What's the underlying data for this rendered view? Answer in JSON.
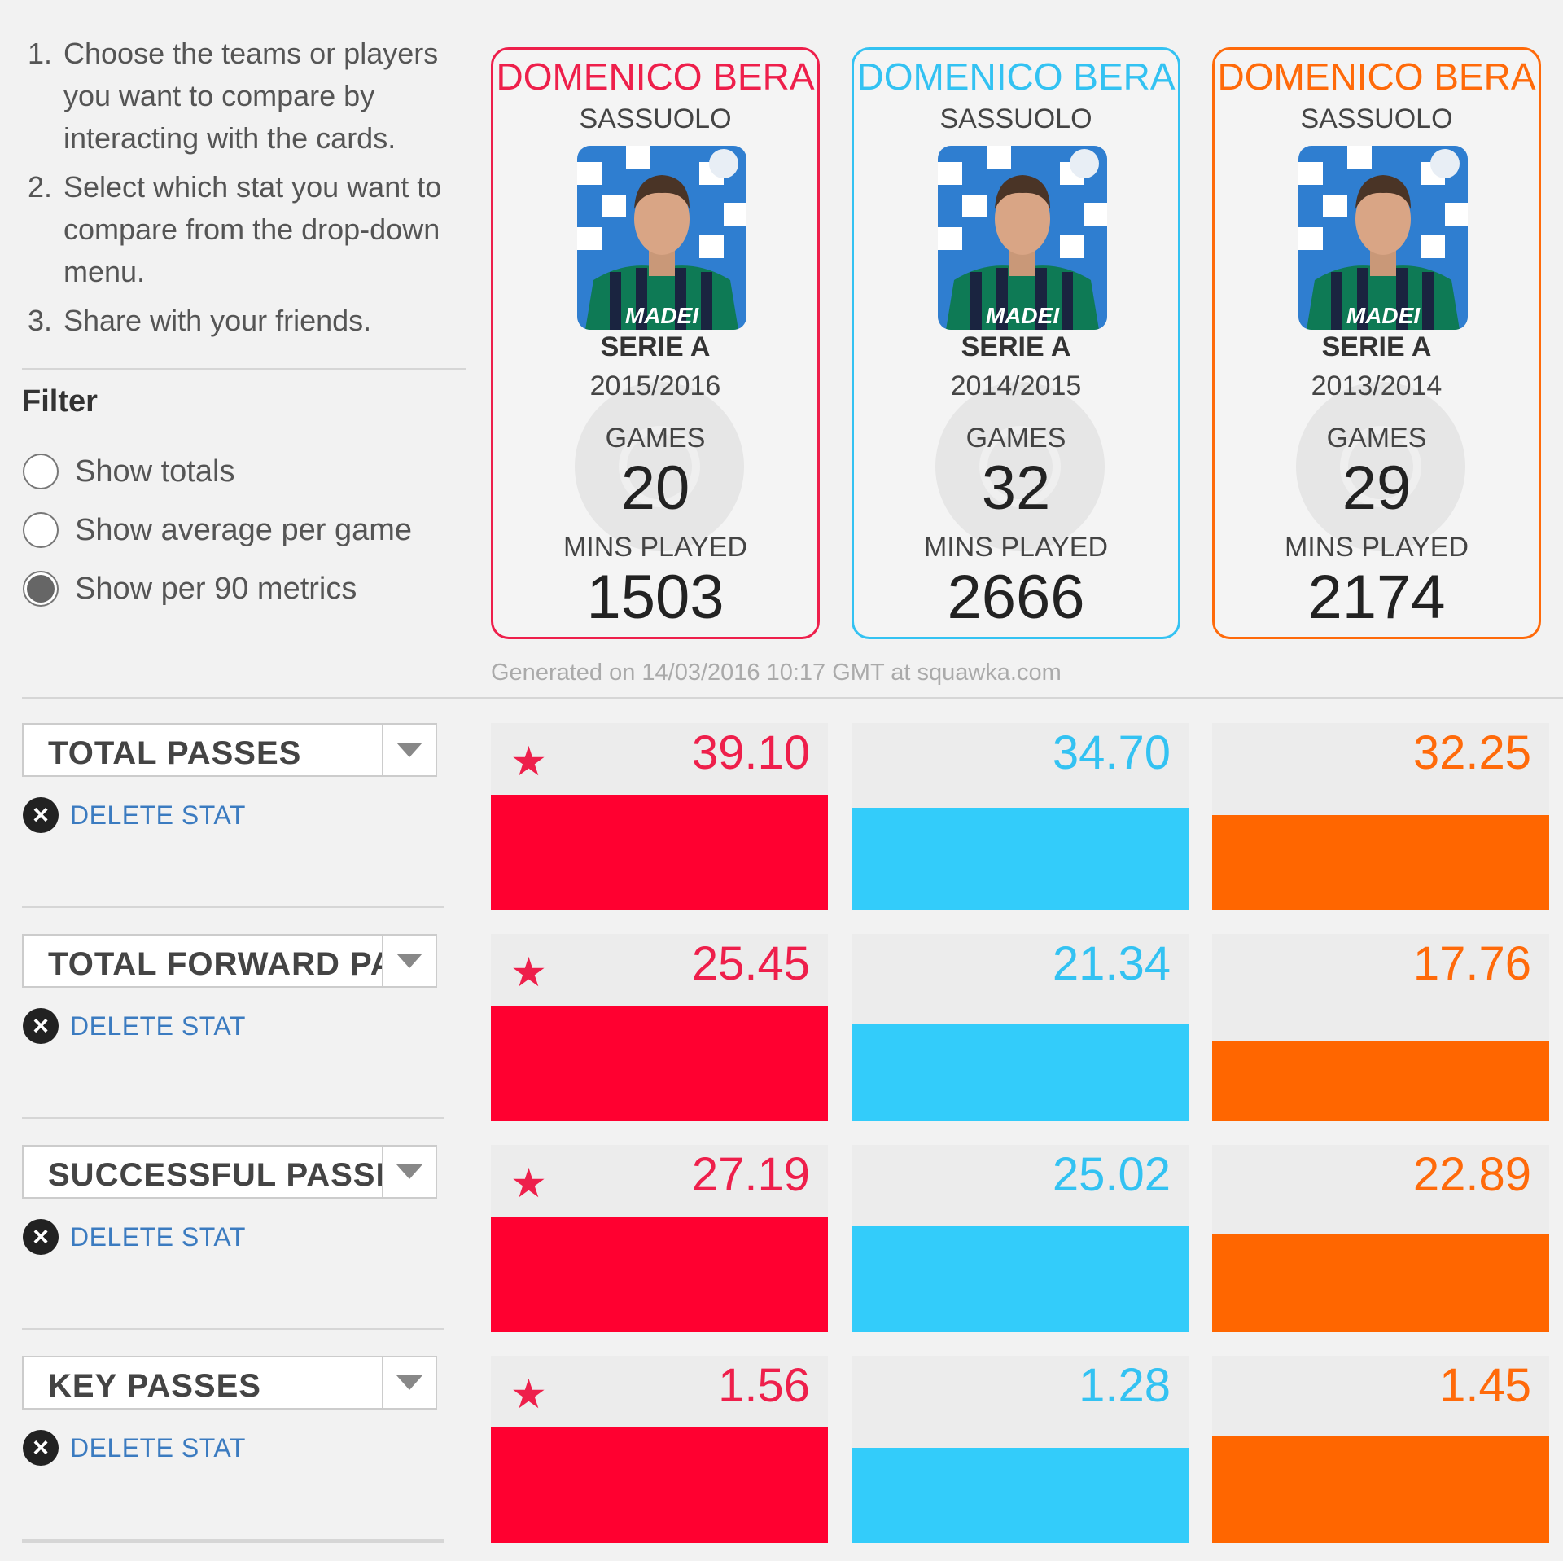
{
  "instructions": [
    {
      "num": "1.",
      "text": "Choose the teams or players you want to compare by interacting with the cards."
    },
    {
      "num": "2.",
      "text": "Select which stat you want to compare from the drop-down menu."
    },
    {
      "num": "3.",
      "text": "Share with your friends."
    }
  ],
  "filter": {
    "title": "Filter",
    "options": [
      {
        "label": "Show totals",
        "selected": false
      },
      {
        "label": "Show average per game",
        "selected": false
      },
      {
        "label": "Show per 90 metrics",
        "selected": true
      }
    ]
  },
  "colors": {
    "player1": "#ee1f4b",
    "player2": "#33c2f2",
    "player3": "#ff6a0a",
    "bar1": "#ff0030",
    "bar2": "#33ccfa",
    "bar3": "#ff6600",
    "star": "#ee1f4b",
    "link": "#3b7bc0"
  },
  "cards": [
    {
      "name": "DOMENICO BERA",
      "team": "SASSUOLO",
      "league": "SERIE A",
      "season": "2015/2016",
      "games_label": "GAMES",
      "games": "20",
      "mins_label": "MINS PLAYED",
      "mins": "1503",
      "color": "#ee1f4b"
    },
    {
      "name": "DOMENICO BERA",
      "team": "SASSUOLO",
      "league": "SERIE A",
      "season": "2014/2015",
      "games_label": "GAMES",
      "games": "32",
      "mins_label": "MINS PLAYED",
      "mins": "2666",
      "color": "#33c2f2"
    },
    {
      "name": "DOMENICO BERA",
      "team": "SASSUOLO",
      "league": "SERIE A",
      "season": "2013/2014",
      "games_label": "GAMES",
      "games": "29",
      "mins_label": "MINS PLAYED",
      "mins": "2174",
      "color": "#ff6a0a"
    }
  ],
  "generated": "Generated on 14/03/2016 10:17 GMT at squawka.com",
  "delete_label": "DELETE STAT",
  "stats": [
    {
      "name": "TOTAL PASSES",
      "values": [
        "39.10",
        "34.70",
        "32.25"
      ],
      "leader": 0,
      "fill": [
        1.0,
        0.887,
        0.825
      ]
    },
    {
      "name": "TOTAL FORWARD PASSES",
      "values": [
        "25.45",
        "21.34",
        "17.76"
      ],
      "leader": 0,
      "fill": [
        1.0,
        0.838,
        0.698
      ]
    },
    {
      "name": "SUCCESSFUL PASSES",
      "values": [
        "27.19",
        "25.02",
        "22.89"
      ],
      "leader": 0,
      "fill": [
        1.0,
        0.92,
        0.842
      ]
    },
    {
      "name": "KEY PASSES",
      "values": [
        "1.56",
        "1.28",
        "1.45"
      ],
      "leader": 0,
      "fill": [
        1.0,
        0.821,
        0.929
      ]
    }
  ]
}
